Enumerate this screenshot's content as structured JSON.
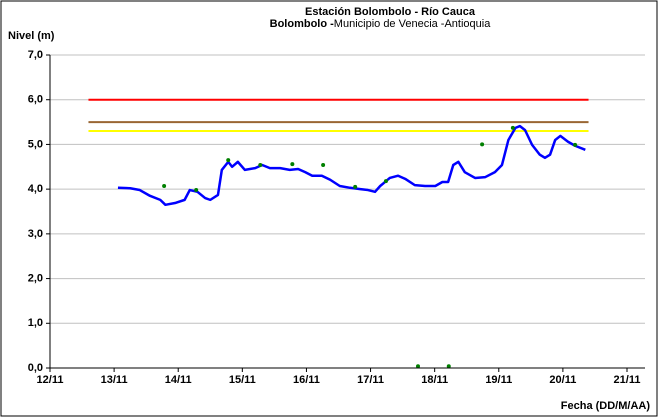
{
  "chart_data": {
    "type": "line",
    "title": "Estación Bolombolo - Río Cauca",
    "subtitle_bold": "Bolombolo -",
    "subtitle": "Municipio de Venecia -Antioquia",
    "y_label": "Nivel (m)",
    "x_label": "Fecha (DD/M/AA)",
    "xlim": [
      12,
      21
    ],
    "ylim": [
      0,
      7
    ],
    "xticks": [
      {
        "value": 12,
        "label": "12/11"
      },
      {
        "value": 13,
        "label": "13/11"
      },
      {
        "value": 14,
        "label": "14/11"
      },
      {
        "value": 15,
        "label": "15/11"
      },
      {
        "value": 16,
        "label": "16/11"
      },
      {
        "value": 17,
        "label": "17/11"
      },
      {
        "value": 18,
        "label": "18/11"
      },
      {
        "value": 19,
        "label": "19/11"
      },
      {
        "value": 20,
        "label": "20/11"
      },
      {
        "value": 21,
        "label": "21/11"
      }
    ],
    "yticks": [
      {
        "value": 0,
        "label": "0,0"
      },
      {
        "value": 1,
        "label": "1,0"
      },
      {
        "value": 2,
        "label": "2,0"
      },
      {
        "value": 3,
        "label": "3,0"
      },
      {
        "value": 4,
        "label": "4,0"
      },
      {
        "value": 5,
        "label": "5,0"
      },
      {
        "value": 6,
        "label": "6,0"
      },
      {
        "value": 7,
        "label": "7,0"
      }
    ],
    "grid": true,
    "series": [
      {
        "kind": "line",
        "color": "#ff0000",
        "width": 2,
        "x": [
          12.6,
          20.4
        ],
        "values": [
          6.0,
          6.0
        ]
      },
      {
        "kind": "line",
        "color": "#996633",
        "width": 2,
        "x": [
          12.6,
          20.4
        ],
        "values": [
          5.5,
          5.5
        ]
      },
      {
        "kind": "line",
        "color": "#ffff00",
        "width": 2,
        "x": [
          12.6,
          20.4
        ],
        "values": [
          5.3,
          5.3
        ]
      },
      {
        "kind": "line",
        "color": "#0000ff",
        "width": 2.5,
        "x": [
          13.06,
          13.25,
          13.4,
          13.56,
          13.72,
          13.8,
          13.95,
          14.1,
          14.18,
          14.3,
          14.42,
          14.5,
          14.62,
          14.68,
          14.78,
          14.84,
          14.93,
          15.04,
          15.2,
          15.31,
          15.43,
          15.59,
          15.74,
          15.87,
          15.98,
          16.09,
          16.24,
          16.37,
          16.52,
          16.68,
          16.84,
          16.96,
          17.07,
          17.15,
          17.3,
          17.43,
          17.54,
          17.69,
          17.85,
          18.01,
          18.12,
          18.21,
          18.29,
          18.37,
          18.47,
          18.63,
          18.79,
          18.94,
          19.05,
          19.15,
          19.26,
          19.33,
          19.41,
          19.52,
          19.64,
          19.72,
          19.8,
          19.88,
          19.96,
          20.08,
          20.19,
          20.35
        ],
        "values": [
          4.03,
          4.02,
          3.98,
          3.85,
          3.76,
          3.65,
          3.69,
          3.76,
          3.98,
          3.94,
          3.8,
          3.76,
          3.87,
          4.43,
          4.61,
          4.5,
          4.61,
          4.43,
          4.47,
          4.54,
          4.47,
          4.47,
          4.43,
          4.45,
          4.38,
          4.3,
          4.3,
          4.21,
          4.07,
          4.03,
          4.0,
          3.98,
          3.94,
          4.07,
          4.25,
          4.3,
          4.23,
          4.09,
          4.07,
          4.07,
          4.16,
          4.16,
          4.54,
          4.61,
          4.38,
          4.25,
          4.27,
          4.38,
          4.54,
          5.1,
          5.37,
          5.41,
          5.32,
          4.99,
          4.77,
          4.7,
          4.77,
          5.1,
          5.19,
          5.06,
          4.97,
          4.88
        ]
      },
      {
        "kind": "scatter",
        "color": "#008000",
        "x": [
          13.78,
          14.28,
          14.78,
          15.28,
          15.78,
          16.26,
          16.76,
          17.24,
          17.74,
          18.22,
          18.74,
          19.22,
          20.19
        ],
        "values": [
          4.07,
          3.98,
          4.65,
          4.54,
          4.56,
          4.54,
          4.05,
          4.18,
          0.04,
          0.04,
          5.0,
          5.37,
          4.99
        ]
      }
    ]
  }
}
